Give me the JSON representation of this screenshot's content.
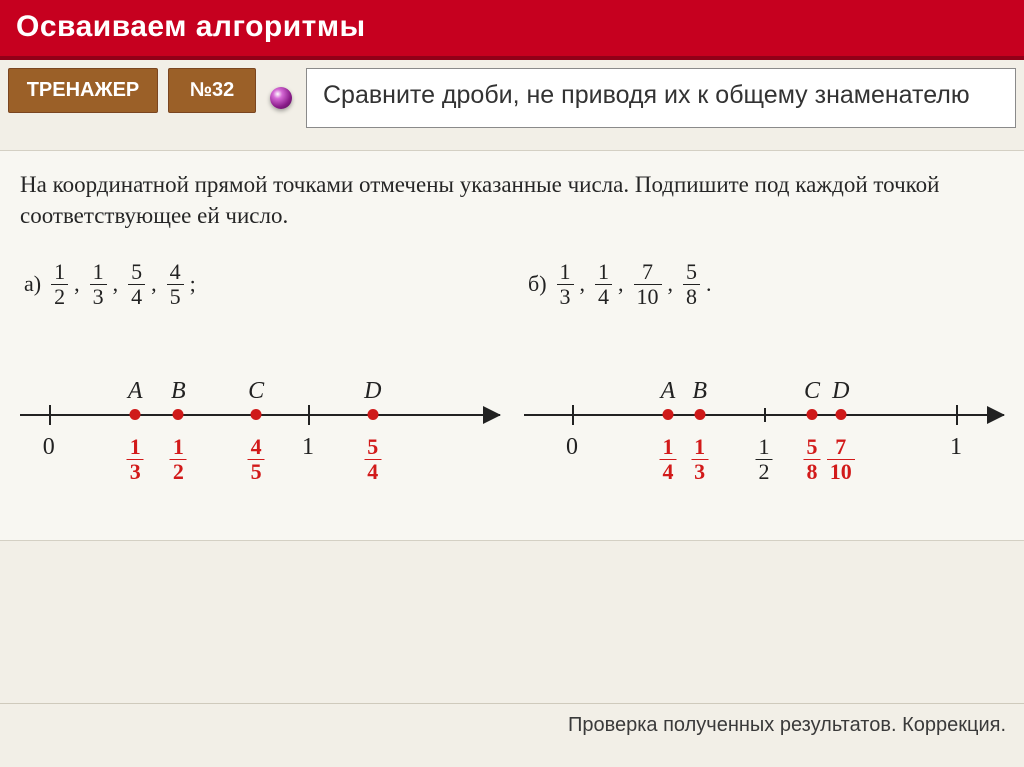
{
  "header": {
    "title": "Осваиваем алгоритмы"
  },
  "badges": {
    "trainer": "ТРЕНАЖЕР",
    "number": "№32"
  },
  "instruction": "Сравните дроби, не приводя их к общему знаменателю",
  "scan_instruction": "На координатной прямой точками отмечены указанные числа. Подпишите под каждой точкой соответствующее ей число.",
  "problem_a": {
    "letter": "a)",
    "fractions": [
      [
        1,
        2
      ],
      [
        1,
        3
      ],
      [
        5,
        4
      ],
      [
        4,
        5
      ]
    ],
    "terminator": ";",
    "axis": {
      "zero_pct": 6,
      "one_pct": 60,
      "zero_label": "0",
      "one_label": "1"
    },
    "points": [
      {
        "letter": "A",
        "pos_pct": 24,
        "answer_num": 1,
        "answer_den": 3
      },
      {
        "letter": "B",
        "pos_pct": 33,
        "answer_num": 1,
        "answer_den": 2
      },
      {
        "letter": "C",
        "pos_pct": 49.2,
        "answer_num": 4,
        "answer_den": 5
      },
      {
        "letter": "D",
        "pos_pct": 73.5,
        "answer_num": 5,
        "answer_den": 4
      }
    ]
  },
  "problem_b": {
    "letter": "б)",
    "fractions": [
      [
        1,
        3
      ],
      [
        1,
        4
      ],
      [
        7,
        10
      ],
      [
        5,
        8
      ]
    ],
    "terminator": ".",
    "axis": {
      "zero_pct": 10,
      "one_pct": 90,
      "half_pct": 50,
      "zero_label": "0",
      "one_label": "1",
      "half_num": 1,
      "half_den": 2
    },
    "points": [
      {
        "letter": "A",
        "pos_pct": 30,
        "answer_num": 1,
        "answer_den": 4
      },
      {
        "letter": "B",
        "pos_pct": 36.6,
        "answer_num": 1,
        "answer_den": 3
      },
      {
        "letter": "C",
        "pos_pct": 60,
        "answer_num": 5,
        "answer_den": 8
      },
      {
        "letter": "D",
        "pos_pct": 66,
        "answer_num": 7,
        "answer_den": 10
      }
    ]
  },
  "footer": "Проверка полученных результатов. Коррекция."
}
